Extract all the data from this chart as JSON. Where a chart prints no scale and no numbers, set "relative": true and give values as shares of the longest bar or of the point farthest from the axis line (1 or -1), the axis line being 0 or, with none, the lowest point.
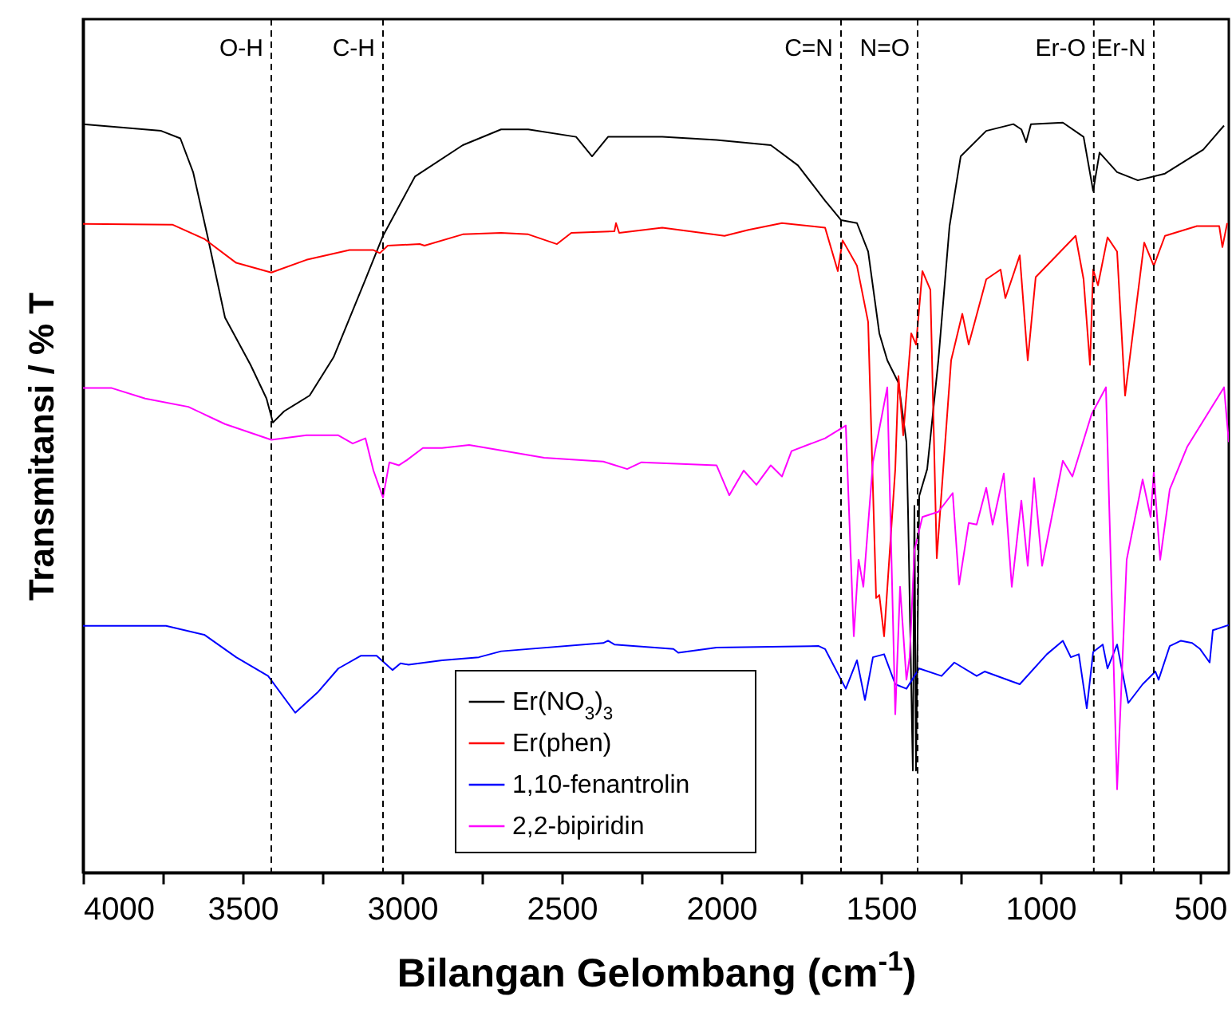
{
  "chart_data": {
    "type": "line",
    "xlabel": "Bilangan Gelombang (cm$^{-1}$)",
    "ylabel": "Transmitansi / % T",
    "relative": true,
    "legend": "bottom",
    "xlim": [
      4000,
      410
    ],
    "xticks": [
      4000,
      {
        "value": 3750,
        "label": null
      },
      3500,
      {
        "value": 3250,
        "label": null
      },
      3000,
      {
        "value": 2750,
        "label": null
      },
      2500,
      {
        "value": 2250,
        "label": null
      },
      2000,
      {
        "value": 1750,
        "label": null
      },
      1500,
      {
        "value": 1250,
        "label": null
      },
      1000,
      {
        "value": 750,
        "label": null
      },
      500
    ],
    "ref_lines": [
      {
        "axis": "x",
        "value": 3410,
        "label": "O-H",
        "line_style": "dashed"
      },
      {
        "axis": "x",
        "value": 3060,
        "label": "C-H",
        "line_style": "dashed"
      },
      {
        "axis": "x",
        "value": 1625,
        "label": "C=N",
        "line_style": "dashed"
      },
      {
        "axis": "x",
        "value": 1385,
        "label": "N=O",
        "line_style": "dashed"
      },
      {
        "axis": "x",
        "value": 833,
        "label": "Er-O",
        "line_style": "dashed"
      },
      {
        "axis": "x",
        "value": 645,
        "label": "Er-N",
        "line_style": "dashed"
      }
    ],
    "series": [
      {
        "name": "Er(NO$_{3}$)$_{3}$",
        "color": "#000000",
        "x": [
          4000,
          3755,
          3695,
          3655,
          3610,
          3555,
          3475,
          3425,
          3405,
          3370,
          3290,
          3215,
          3115,
          3060,
          2960,
          2810,
          2690,
          2605,
          2455,
          2405,
          2355,
          2185,
          2015,
          1845,
          1760,
          1675,
          1625,
          1575,
          1540,
          1505,
          1480,
          1445,
          1420,
          1415,
          1410,
          1400,
          1395,
          1390,
          1380,
          1355,
          1320,
          1285,
          1250,
          1170,
          1085,
          1060,
          1045,
          1030,
          930,
          865,
          835,
          815,
          760,
          695,
          610,
          490,
          425
        ],
        "values": [
          0.998,
          0.989,
          0.979,
          0.934,
          0.849,
          0.74,
          0.677,
          0.632,
          0.6,
          0.615,
          0.636,
          0.687,
          0.791,
          0.849,
          0.928,
          0.97,
          0.991,
          0.991,
          0.981,
          0.955,
          0.981,
          0.981,
          0.977,
          0.97,
          0.943,
          0.896,
          0.87,
          0.866,
          0.828,
          0.719,
          0.683,
          0.653,
          0.574,
          0.481,
          0.366,
          0.136,
          0.489,
          0.136,
          0.502,
          0.538,
          0.683,
          0.862,
          0.955,
          0.989,
          0.998,
          0.991,
          0.974,
          0.998,
          1.0,
          0.981,
          0.909,
          0.96,
          0.934,
          0.923,
          0.932,
          0.964,
          0.996
        ]
      },
      {
        "name": "Er(phen)",
        "color": "#ff0000",
        "x": [
          4000,
          3720,
          3620,
          3520,
          3410,
          3300,
          3165,
          3090,
          3070,
          3045,
          2945,
          2930,
          2810,
          2690,
          2605,
          2515,
          2470,
          2335,
          2330,
          2320,
          2185,
          1990,
          1915,
          1810,
          1675,
          1635,
          1620,
          1575,
          1540,
          1515,
          1505,
          1490,
          1455,
          1445,
          1430,
          1405,
          1390,
          1370,
          1345,
          1325,
          1280,
          1245,
          1225,
          1170,
          1125,
          1110,
          1065,
          1040,
          1015,
          890,
          865,
          845,
          835,
          820,
          790,
          760,
          735,
          675,
          645,
          610,
          510,
          440,
          430,
          415
        ],
        "values": [
          0.865,
          0.864,
          0.845,
          0.813,
          0.8,
          0.817,
          0.83,
          0.83,
          0.826,
          0.836,
          0.838,
          0.836,
          0.851,
          0.853,
          0.851,
          0.838,
          0.853,
          0.855,
          0.866,
          0.853,
          0.86,
          0.849,
          0.857,
          0.866,
          0.86,
          0.802,
          0.843,
          0.809,
          0.734,
          0.366,
          0.37,
          0.315,
          0.538,
          0.662,
          0.583,
          0.719,
          0.704,
          0.802,
          0.777,
          0.419,
          0.683,
          0.745,
          0.704,
          0.791,
          0.804,
          0.766,
          0.823,
          0.683,
          0.794,
          0.849,
          0.791,
          0.677,
          0.804,
          0.783,
          0.847,
          0.828,
          0.636,
          0.84,
          0.809,
          0.849,
          0.862,
          0.862,
          0.834,
          0.866
        ]
      },
      {
        "name": "1,10-fenantrolin",
        "color": "#0000ff",
        "x": [
          4000,
          3740,
          3620,
          3520,
          3420,
          3335,
          3265,
          3200,
          3130,
          3080,
          3030,
          3005,
          2980,
          2875,
          2760,
          2690,
          2370,
          2355,
          2335,
          2150,
          2135,
          2015,
          1695,
          1675,
          1610,
          1575,
          1550,
          1525,
          1490,
          1455,
          1420,
          1380,
          1310,
          1270,
          1200,
          1175,
          1065,
          980,
          930,
          905,
          880,
          855,
          835,
          805,
          790,
          760,
          725,
          680,
          640,
          630,
          595,
          560,
          525,
          500,
          470,
          460,
          410
        ],
        "values": [
          0.329,
          0.329,
          0.317,
          0.287,
          0.262,
          0.213,
          0.24,
          0.272,
          0.289,
          0.289,
          0.27,
          0.279,
          0.277,
          0.283,
          0.287,
          0.295,
          0.306,
          0.309,
          0.304,
          0.298,
          0.293,
          0.3,
          0.302,
          0.298,
          0.245,
          0.283,
          0.23,
          0.287,
          0.291,
          0.251,
          0.245,
          0.272,
          0.262,
          0.28,
          0.262,
          0.268,
          0.251,
          0.291,
          0.309,
          0.287,
          0.291,
          0.219,
          0.294,
          0.304,
          0.272,
          0.304,
          0.226,
          0.251,
          0.268,
          0.257,
          0.302,
          0.309,
          0.306,
          0.298,
          0.28,
          0.323,
          0.33
        ]
      },
      {
        "name": "2,2-bipiridin",
        "color": "#ff00ff",
        "x": [
          4000,
          3910,
          3805,
          3670,
          3555,
          3410,
          3300,
          3200,
          3155,
          3115,
          3090,
          3060,
          3040,
          3010,
          2985,
          2935,
          2875,
          2790,
          2760,
          2555,
          2370,
          2295,
          2250,
          2015,
          1975,
          1930,
          1890,
          1845,
          1810,
          1780,
          1675,
          1610,
          1585,
          1570,
          1555,
          1525,
          1480,
          1455,
          1440,
          1420,
          1410,
          1395,
          1370,
          1320,
          1275,
          1255,
          1225,
          1200,
          1170,
          1150,
          1115,
          1090,
          1060,
          1040,
          1020,
          995,
          930,
          900,
          840,
          795,
          760,
          730,
          680,
          655,
          645,
          625,
          595,
          540,
          425,
          410
        ],
        "values": [
          0.646,
          0.646,
          0.632,
          0.621,
          0.598,
          0.577,
          0.583,
          0.583,
          0.572,
          0.579,
          0.536,
          0.5,
          0.547,
          0.543,
          0.55,
          0.566,
          0.566,
          0.57,
          0.568,
          0.553,
          0.548,
          0.538,
          0.547,
          0.543,
          0.503,
          0.536,
          0.517,
          0.543,
          0.528,
          0.562,
          0.579,
          0.596,
          0.315,
          0.417,
          0.381,
          0.547,
          0.647,
          0.211,
          0.381,
          0.257,
          0.287,
          0.43,
          0.474,
          0.481,
          0.506,
          0.384,
          0.466,
          0.464,
          0.513,
          0.464,
          0.532,
          0.381,
          0.496,
          0.409,
          0.526,
          0.409,
          0.549,
          0.528,
          0.611,
          0.647,
          0.111,
          0.417,
          0.524,
          0.474,
          0.534,
          0.417,
          0.511,
          0.568,
          0.647,
          0.574
        ]
      }
    ]
  }
}
